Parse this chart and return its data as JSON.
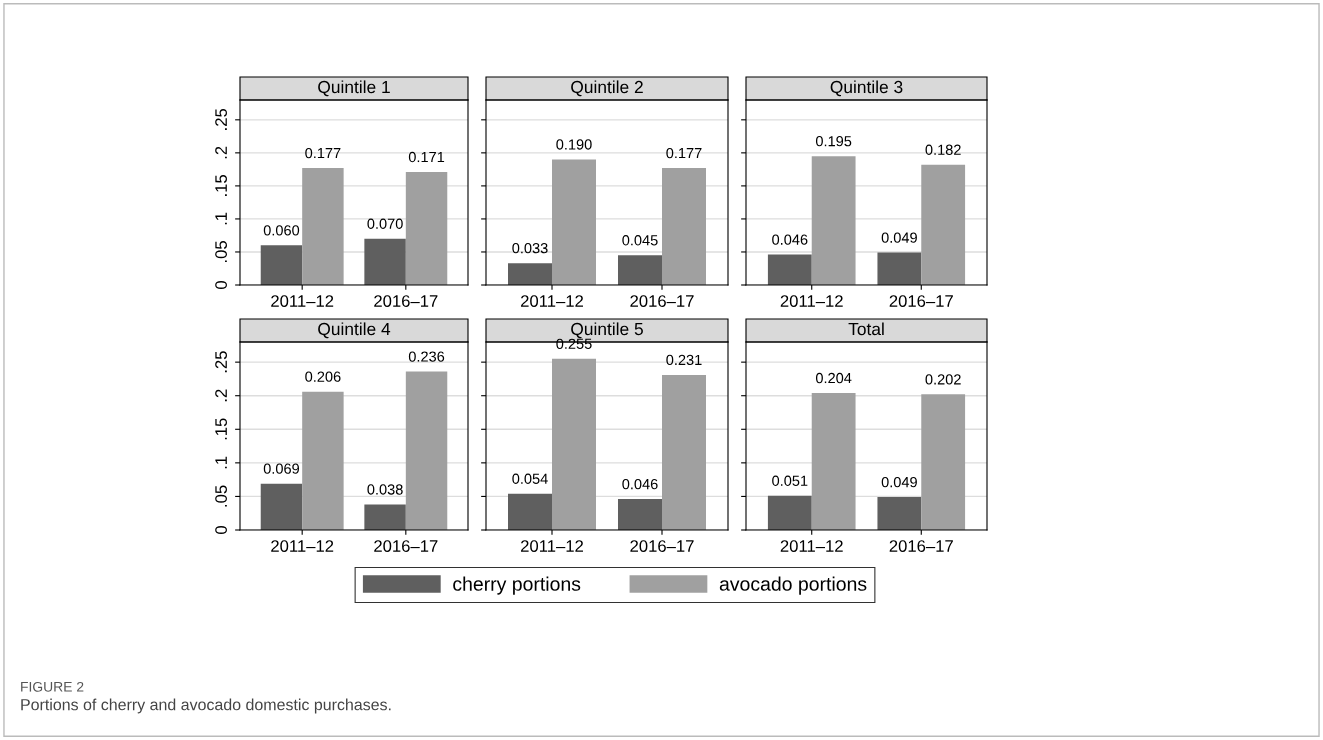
{
  "chart_data": [
    {
      "type": "bar",
      "title": "Quintile 1",
      "categories": [
        "2011–12",
        "2016–17"
      ],
      "ylim": [
        0,
        0.28
      ],
      "yticks": [
        {
          "value": 0,
          "label": "0"
        },
        {
          "value": 0.05,
          "label": ".05"
        },
        {
          "value": 0.1,
          "label": ".1"
        },
        {
          "value": 0.15,
          "label": ".15"
        },
        {
          "value": 0.2,
          "label": ".2"
        },
        {
          "value": 0.25,
          "label": ".25"
        }
      ],
      "grid": "y",
      "legend": "bottom",
      "series": [
        {
          "name": "cherry portions",
          "color": "#5f5f5f",
          "values": [
            0.06,
            0.07
          ],
          "value_labels": [
            "0.060",
            "0.070"
          ]
        },
        {
          "name": "avocado portions",
          "color": "#a0a0a0",
          "values": [
            0.177,
            0.171
          ],
          "value_labels": [
            "0.177",
            "0.171"
          ]
        }
      ],
      "annotations": [
        "FIGURE 2",
        "Portions of cherry and avocado domestic purchases."
      ]
    },
    {
      "type": "bar",
      "title": "Quintile 2",
      "categories": [
        "2011–12",
        "2016–17"
      ],
      "ylim": [
        0,
        0.28
      ],
      "yticks": [
        {
          "value": 0,
          "label": null
        },
        {
          "value": 0.05,
          "label": null
        },
        {
          "value": 0.1,
          "label": null
        },
        {
          "value": 0.15,
          "label": null
        },
        {
          "value": 0.2,
          "label": null
        },
        {
          "value": 0.25,
          "label": null
        }
      ],
      "grid": "y",
      "tick_labels": "x",
      "series": [
        {
          "color": "#5f5f5f",
          "values": [
            0.033,
            0.045
          ],
          "value_labels": [
            "0.033",
            "0.045"
          ]
        },
        {
          "color": "#a0a0a0",
          "values": [
            0.19,
            0.177
          ],
          "value_labels": [
            "0.190",
            "0.177"
          ]
        }
      ]
    },
    {
      "type": "bar",
      "title": "Quintile 3",
      "categories": [
        "2011–12",
        "2016–17"
      ],
      "ylim": [
        0,
        0.28
      ],
      "yticks": [
        {
          "value": 0,
          "label": null
        },
        {
          "value": 0.05,
          "label": null
        },
        {
          "value": 0.1,
          "label": null
        },
        {
          "value": 0.15,
          "label": null
        },
        {
          "value": 0.2,
          "label": null
        },
        {
          "value": 0.25,
          "label": null
        }
      ],
      "grid": "y",
      "tick_labels": "x",
      "series": [
        {
          "color": "#5f5f5f",
          "values": [
            0.046,
            0.049
          ],
          "value_labels": [
            "0.046",
            "0.049"
          ]
        },
        {
          "color": "#a0a0a0",
          "values": [
            0.195,
            0.182
          ],
          "value_labels": [
            "0.195",
            "0.182"
          ]
        }
      ]
    },
    {
      "type": "bar",
      "title": "Quintile 4",
      "categories": [
        "2011–12",
        "2016–17"
      ],
      "ylim": [
        0,
        0.28
      ],
      "yticks": [
        {
          "value": 0,
          "label": "0"
        },
        {
          "value": 0.05,
          "label": ".05"
        },
        {
          "value": 0.1,
          "label": ".1"
        },
        {
          "value": 0.15,
          "label": ".15"
        },
        {
          "value": 0.2,
          "label": ".2"
        },
        {
          "value": 0.25,
          "label": ".25"
        }
      ],
      "grid": "y",
      "series": [
        {
          "color": "#5f5f5f",
          "values": [
            0.069,
            0.038
          ],
          "value_labels": [
            "0.069",
            "0.038"
          ]
        },
        {
          "color": "#a0a0a0",
          "values": [
            0.206,
            0.236
          ],
          "value_labels": [
            "0.206",
            "0.236"
          ]
        }
      ]
    },
    {
      "type": "bar",
      "title": "Quintile 5",
      "categories": [
        "2011–12",
        "2016–17"
      ],
      "ylim": [
        0,
        0.28
      ],
      "yticks": [
        {
          "value": 0,
          "label": null
        },
        {
          "value": 0.05,
          "label": null
        },
        {
          "value": 0.1,
          "label": null
        },
        {
          "value": 0.15,
          "label": null
        },
        {
          "value": 0.2,
          "label": null
        },
        {
          "value": 0.25,
          "label": null
        }
      ],
      "grid": "y",
      "tick_labels": "x",
      "series": [
        {
          "color": "#5f5f5f",
          "values": [
            0.054,
            0.046
          ],
          "value_labels": [
            "0.054",
            "0.046"
          ]
        },
        {
          "color": "#a0a0a0",
          "values": [
            0.255,
            0.231
          ],
          "value_labels": [
            "0.255",
            "0.231"
          ]
        }
      ]
    },
    {
      "type": "bar",
      "title": "Total",
      "categories": [
        "2011–12",
        "2016–17"
      ],
      "ylim": [
        0,
        0.28
      ],
      "yticks": [
        {
          "value": 0,
          "label": null
        },
        {
          "value": 0.05,
          "label": null
        },
        {
          "value": 0.1,
          "label": null
        },
        {
          "value": 0.15,
          "label": null
        },
        {
          "value": 0.2,
          "label": null
        },
        {
          "value": 0.25,
          "label": null
        }
      ],
      "grid": "y",
      "tick_labels": "x",
      "series": [
        {
          "color": "#5f5f5f",
          "values": [
            0.051,
            0.049
          ],
          "value_labels": [
            "0.051",
            "0.049"
          ]
        },
        {
          "color": "#a0a0a0",
          "values": [
            0.204,
            0.202
          ],
          "value_labels": [
            "0.204",
            "0.202"
          ]
        }
      ]
    }
  ]
}
